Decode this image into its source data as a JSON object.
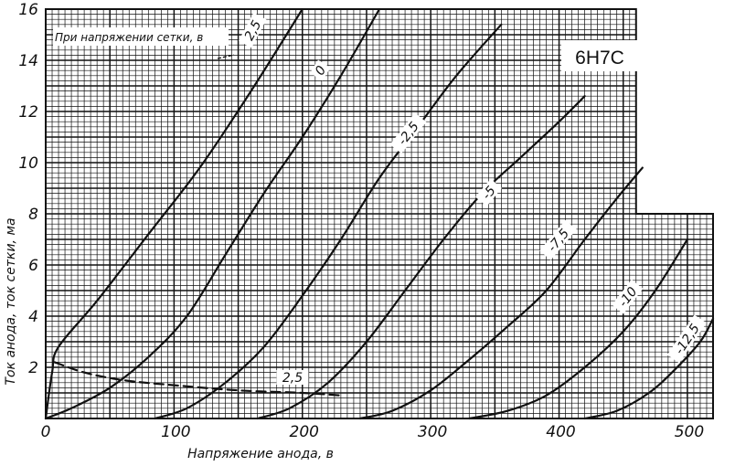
{
  "chart_data": {
    "type": "line",
    "title": "6Н7С",
    "xlabel": "Напряжение анода, в",
    "ylabel": "Ток анода, ток сетки, ма",
    "xlim": [
      0,
      520
    ],
    "ylim": [
      0,
      16
    ],
    "x_ticks": [
      "0",
      "100",
      "200",
      "300",
      "400",
      "500"
    ],
    "y_ticks": [
      "2",
      "4",
      "6",
      "8",
      "10",
      "12",
      "14",
      "16"
    ],
    "grid": true,
    "legend_note": "При напряжении сетки, в",
    "series": [
      {
        "name": "2,5",
        "style": "solid",
        "points": [
          [
            0,
            0
          ],
          [
            5,
            1.8
          ],
          [
            10,
            2.8
          ],
          [
            40,
            4.6
          ],
          [
            80,
            7.2
          ],
          [
            120,
            9.8
          ],
          [
            160,
            12.8
          ],
          [
            200,
            16.0
          ]
        ]
      },
      {
        "name": "0",
        "style": "solid",
        "points": [
          [
            0,
            0
          ],
          [
            20,
            0.4
          ],
          [
            50,
            1.2
          ],
          [
            80,
            2.4
          ],
          [
            110,
            4.0
          ],
          [
            140,
            6.4
          ],
          [
            170,
            8.8
          ],
          [
            200,
            11.0
          ],
          [
            230,
            13.4
          ],
          [
            260,
            16.0
          ]
        ]
      },
      {
        "name": "-2,5",
        "style": "solid",
        "points": [
          [
            85,
            0
          ],
          [
            110,
            0.4
          ],
          [
            140,
            1.4
          ],
          [
            170,
            2.8
          ],
          [
            200,
            4.8
          ],
          [
            230,
            7.0
          ],
          [
            260,
            9.4
          ],
          [
            290,
            11.4
          ],
          [
            320,
            13.4
          ],
          [
            355,
            15.4
          ]
        ]
      },
      {
        "name": "-5",
        "style": "solid",
        "points": [
          [
            165,
            0
          ],
          [
            190,
            0.4
          ],
          [
            220,
            1.4
          ],
          [
            250,
            3.0
          ],
          [
            280,
            5.0
          ],
          [
            310,
            7.0
          ],
          [
            340,
            8.8
          ],
          [
            370,
            10.2
          ],
          [
            400,
            11.6
          ],
          [
            420,
            12.6
          ]
        ]
      },
      {
        "name": "-7,5",
        "style": "solid",
        "points": [
          [
            245,
            0
          ],
          [
            270,
            0.3
          ],
          [
            300,
            1.1
          ],
          [
            330,
            2.3
          ],
          [
            360,
            3.6
          ],
          [
            390,
            5.0
          ],
          [
            420,
            7.0
          ],
          [
            445,
            8.6
          ],
          [
            465,
            9.8
          ]
        ]
      },
      {
        "name": "-10",
        "style": "solid",
        "points": [
          [
            330,
            0
          ],
          [
            360,
            0.3
          ],
          [
            390,
            0.9
          ],
          [
            420,
            2.0
          ],
          [
            450,
            3.4
          ],
          [
            475,
            5.0
          ],
          [
            500,
            7.0
          ]
        ]
      },
      {
        "name": "-12,5",
        "style": "solid",
        "points": [
          [
            420,
            0
          ],
          [
            445,
            0.3
          ],
          [
            470,
            1.0
          ],
          [
            490,
            1.9
          ],
          [
            510,
            3.0
          ],
          [
            520,
            3.9
          ]
        ]
      },
      {
        "name": "2,5",
        "style": "dashed",
        "points": [
          [
            7,
            2.2
          ],
          [
            30,
            1.8
          ],
          [
            60,
            1.5
          ],
          [
            100,
            1.3
          ],
          [
            150,
            1.1
          ],
          [
            200,
            1.0
          ],
          [
            230,
            0.9
          ]
        ]
      }
    ],
    "curve_labels": [
      {
        "text": "2,5",
        "series": 0
      },
      {
        "text": "0",
        "series": 1
      },
      {
        "text": "-2,5",
        "series": 2
      },
      {
        "text": "-5",
        "series": 3
      },
      {
        "text": "-7,5",
        "series": 4
      },
      {
        "text": "-10",
        "series": 5
      },
      {
        "text": "-12,5",
        "series": 6
      },
      {
        "text": "2,5",
        "series": 7
      }
    ]
  }
}
